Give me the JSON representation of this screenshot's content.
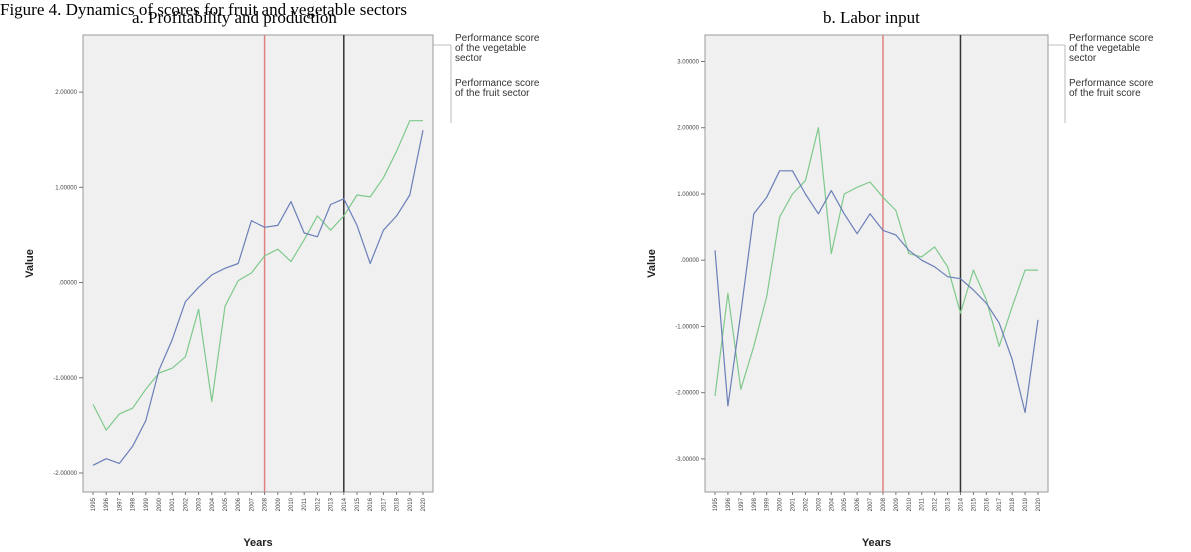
{
  "figure_caption": "Figure 4. Dynamics of scores for fruit and vegetable sectors",
  "colors": {
    "vegetable": "#7fc98c",
    "fruit": "#6b7fb8",
    "red_marker": "#e08080",
    "black_marker": "#333333",
    "plot_bg": "#f0f0f0"
  },
  "chart_data": [
    {
      "type": "line",
      "title": "a. Profitability and production",
      "xlabel": "Years",
      "ylabel": "Value",
      "ylim": [
        -2.2,
        2.6
      ],
      "yticks": [
        "-2.00000",
        "-1.00000",
        ".00000",
        "1.00000",
        "2.00000"
      ],
      "ytick_values": [
        -2,
        -1,
        0,
        1,
        2
      ],
      "x": [
        "1995",
        "1996",
        "1997",
        "1998",
        "1999",
        "2000",
        "2001",
        "2002",
        "2003",
        "2004",
        "2005",
        "2006",
        "2007",
        "2008",
        "2009",
        "2010",
        "2011",
        "2012",
        "2013",
        "2014",
        "2015",
        "2016",
        "2017",
        "2018",
        "2019",
        "2020"
      ],
      "vertical_lines": [
        {
          "x": "2008",
          "color": "red"
        },
        {
          "x": "2014",
          "color": "black"
        }
      ],
      "series": [
        {
          "name": "Performance score of the vegetable sector",
          "color": "green",
          "values": [
            -1.28,
            -1.55,
            -1.38,
            -1.32,
            -1.12,
            -0.95,
            -0.9,
            -0.78,
            -0.28,
            -1.25,
            -0.25,
            0.02,
            0.1,
            0.28,
            0.35,
            0.22,
            0.45,
            0.7,
            0.55,
            0.7,
            0.92,
            0.9,
            1.1,
            1.38,
            1.7,
            1.7
          ]
        },
        {
          "name": "Performance score of the fruit sector",
          "color": "blue",
          "values": [
            -1.92,
            -1.85,
            -1.9,
            -1.72,
            -1.45,
            -0.92,
            -0.6,
            -0.2,
            -0.05,
            0.08,
            0.15,
            0.2,
            0.65,
            0.58,
            0.6,
            0.85,
            0.52,
            0.48,
            0.82,
            0.88,
            0.6,
            0.2,
            0.55,
            0.7,
            0.92,
            1.6
          ]
        }
      ],
      "legend": "right"
    },
    {
      "type": "line",
      "title": "b. Labor input",
      "xlabel": "Years",
      "ylabel": "Value",
      "ylim": [
        -3.5,
        3.4
      ],
      "yticks": [
        "-3.00000",
        "-2.00000",
        "-1.00000",
        ".00000",
        "1.00000",
        "2.00000",
        "3.00000"
      ],
      "ytick_values": [
        -3,
        -2,
        -1,
        0,
        1,
        2,
        3
      ],
      "x": [
        "1995",
        "1996",
        "1997",
        "1998",
        "1999",
        "2000",
        "2001",
        "2002",
        "2003",
        "2004",
        "2005",
        "2006",
        "2007",
        "2008",
        "2009",
        "2010",
        "2011",
        "2012",
        "2013",
        "2014",
        "2015",
        "2016",
        "2017",
        "2018",
        "2019",
        "2020"
      ],
      "vertical_lines": [
        {
          "x": "2008",
          "color": "red"
        },
        {
          "x": "2014",
          "color": "black"
        }
      ],
      "series": [
        {
          "name": "Performance score of the vegetable sector",
          "color": "green",
          "values": [
            -2.05,
            -0.5,
            -1.95,
            -1.3,
            -0.55,
            0.65,
            1.0,
            1.2,
            2.0,
            0.1,
            1.0,
            1.1,
            1.18,
            0.95,
            0.75,
            0.1,
            0.05,
            0.2,
            -0.1,
            -0.8,
            -0.15,
            -0.6,
            -1.3,
            -0.7,
            -0.15,
            -0.15
          ]
        },
        {
          "name": "Performance score of the fruit score",
          "color": "blue",
          "values": [
            0.15,
            -2.2,
            -0.8,
            0.7,
            0.95,
            1.35,
            1.35,
            1.0,
            0.7,
            1.05,
            0.7,
            0.4,
            0.7,
            0.45,
            0.38,
            0.15,
            0.0,
            -0.1,
            -0.25,
            -0.28,
            -0.45,
            -0.65,
            -0.95,
            -1.5,
            -2.3,
            -0.9
          ]
        }
      ],
      "legend": "right"
    }
  ]
}
